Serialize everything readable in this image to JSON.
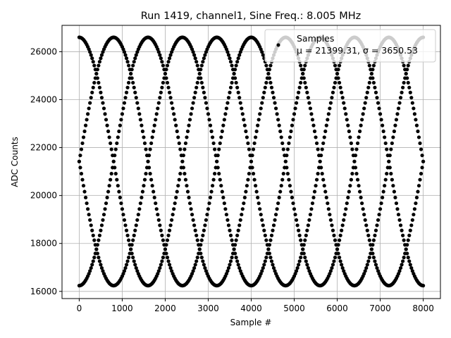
{
  "chart_data": {
    "type": "scatter",
    "title": "Run 1419, channel1, Sine Freq.: 8.005 MHz",
    "xlabel": "Sample #",
    "ylabel": "ADC Counts",
    "xlim": [
      -400,
      8400
    ],
    "ylim": [
      15700,
      27100
    ],
    "xticks": [
      0,
      1000,
      2000,
      3000,
      4000,
      5000,
      6000,
      7000,
      8000
    ],
    "yticks": [
      16000,
      18000,
      20000,
      22000,
      24000,
      26000
    ],
    "xtick_labels": [
      "0",
      "1000",
      "2000",
      "3000",
      "4000",
      "5000",
      "6000",
      "7000",
      "8000"
    ],
    "ytick_labels": [
      "16000",
      "18000",
      "20000",
      "22000",
      "24000",
      "26000"
    ],
    "grid": true,
    "legend_position": "top-right",
    "marker_color": "#000000",
    "series": [
      {
        "name": "Samples",
        "label_line2": "μ = 21399.31, σ = 3650.53",
        "mean": 21399.31,
        "std": 3650.53,
        "amplitude": 5180,
        "offset": 21420,
        "period_samples": 3200,
        "phases_deg": [
          0,
          90,
          180,
          270
        ],
        "x_range": [
          0,
          8000
        ]
      }
    ]
  }
}
